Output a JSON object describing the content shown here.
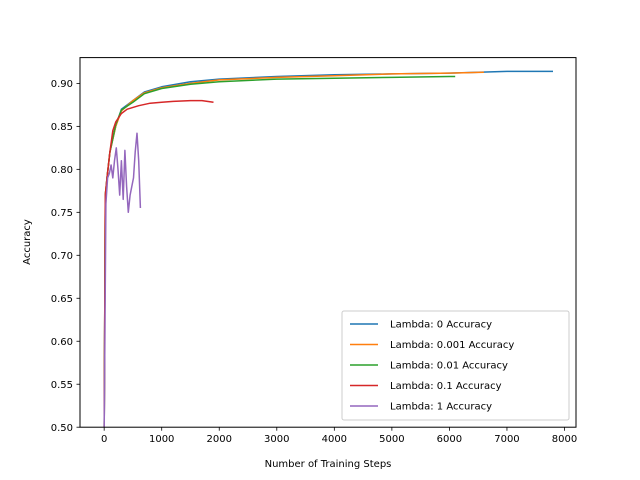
{
  "chart_data": {
    "type": "line",
    "title": "",
    "xlabel": "Number of Training Steps",
    "ylabel": "Accuracy",
    "xlim": [
      -420,
      8200
    ],
    "ylim": [
      0.5,
      0.93
    ],
    "xticks": [
      0,
      1000,
      2000,
      3000,
      4000,
      5000,
      6000,
      7000,
      8000
    ],
    "yticks": [
      0.5,
      0.55,
      0.6,
      0.65,
      0.7,
      0.75,
      0.8,
      0.85,
      0.9
    ],
    "grid": false,
    "legend_position": "lower-right",
    "series": [
      {
        "name": "Lambda: 0 Accuracy",
        "color": "#1f77b4",
        "x": [
          0,
          20,
          50,
          100,
          200,
          300,
          500,
          700,
          1000,
          1500,
          2000,
          3000,
          4000,
          5000,
          6000,
          6500,
          7000,
          7500,
          7800
        ],
        "y": [
          0.5,
          0.76,
          0.79,
          0.82,
          0.85,
          0.87,
          0.88,
          0.89,
          0.896,
          0.902,
          0.905,
          0.908,
          0.91,
          0.911,
          0.912,
          0.913,
          0.914,
          0.914,
          0.914
        ]
      },
      {
        "name": "Lambda: 0.001 Accuracy",
        "color": "#ff7f0e",
        "x": [
          0,
          20,
          50,
          100,
          200,
          300,
          500,
          700,
          1000,
          1500,
          2000,
          3000,
          4000,
          5000,
          6000,
          6600
        ],
        "y": [
          0.5,
          0.77,
          0.79,
          0.82,
          0.85,
          0.868,
          0.88,
          0.889,
          0.895,
          0.9,
          0.904,
          0.907,
          0.909,
          0.911,
          0.912,
          0.913
        ]
      },
      {
        "name": "Lambda: 0.01 Accuracy",
        "color": "#2ca02c",
        "x": [
          0,
          20,
          50,
          100,
          200,
          300,
          500,
          700,
          1000,
          1500,
          2000,
          3000,
          4000,
          5000,
          6000,
          6100
        ],
        "y": [
          0.5,
          0.77,
          0.79,
          0.82,
          0.852,
          0.869,
          0.878,
          0.888,
          0.894,
          0.899,
          0.902,
          0.905,
          0.906,
          0.907,
          0.908,
          0.908
        ]
      },
      {
        "name": "Lambda: 0.1 Accuracy",
        "color": "#d62728",
        "x": [
          0,
          20,
          50,
          100,
          150,
          200,
          300,
          400,
          600,
          800,
          1000,
          1200,
          1500,
          1700,
          1900
        ],
        "y": [
          0.5,
          0.77,
          0.79,
          0.82,
          0.845,
          0.855,
          0.865,
          0.87,
          0.874,
          0.877,
          0.878,
          0.879,
          0.88,
          0.88,
          0.878
        ]
      },
      {
        "name": "Lambda: 1 Accuracy",
        "color": "#9467bd",
        "x": [
          0,
          15,
          30,
          60,
          90,
          120,
          150,
          180,
          210,
          240,
          270,
          300,
          330,
          360,
          390,
          420,
          450,
          480,
          510,
          540,
          570,
          600,
          630
        ],
        "y": [
          0.5,
          0.62,
          0.76,
          0.79,
          0.795,
          0.805,
          0.79,
          0.81,
          0.825,
          0.8,
          0.77,
          0.81,
          0.765,
          0.822,
          0.78,
          0.75,
          0.77,
          0.78,
          0.79,
          0.82,
          0.842,
          0.81,
          0.755
        ]
      }
    ]
  }
}
